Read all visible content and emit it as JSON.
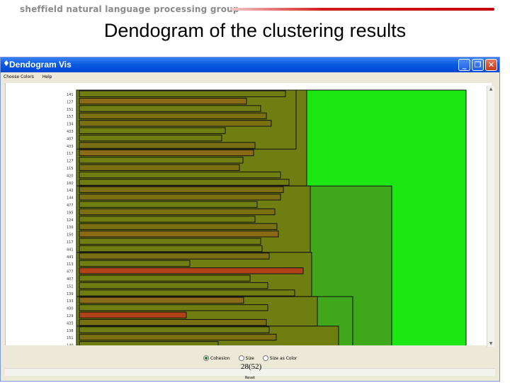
{
  "slide": {
    "header_text": "sheffield natural language processing group",
    "title": "Dendogram of the clustering results",
    "slide_number": "28(52)",
    "accent_line_color": "#c40000"
  },
  "window": {
    "title": "Dendogram Vis",
    "menu": [
      "Choose Colors",
      "Help"
    ],
    "buttons": {
      "minimize": "_",
      "maximize": "❐",
      "close": "✕"
    }
  },
  "dendrogram": {
    "leaf_labels": [
      "141",
      "127",
      "151",
      "157",
      "134",
      "433",
      "407",
      "433",
      "117",
      "127",
      "115",
      "420",
      "160",
      "142",
      "144",
      "477",
      "195",
      "124",
      "139",
      "150",
      "117",
      "441",
      "443",
      "113",
      "477",
      "407",
      "151",
      "139",
      "133",
      "430",
      "129",
      "433",
      "138",
      "151",
      "140"
    ],
    "leaf_colors": [
      "#6e7e10",
      "#8a6a14",
      "#6e7e10",
      "#7a7012",
      "#7a7012",
      "#6e7e10",
      "#6e7e10",
      "#7a7012",
      "#8a6a14",
      "#6e7e10",
      "#7a7012",
      "#6e7e10",
      "#6e7e10",
      "#7a7012",
      "#7a7012",
      "#6e7e10",
      "#7a7012",
      "#6e7e10",
      "#7a7012",
      "#8a6a14",
      "#6e7e10",
      "#6e7e10",
      "#7a7012",
      "#6e7e10",
      "#b0421a",
      "#6e7e10",
      "#6e7e10",
      "#6e7e10",
      "#8a6a14",
      "#6e7e10",
      "#b0421a",
      "#7a7012",
      "#6e7e10",
      "#7a7012",
      "#6e7e10"
    ],
    "colors": {
      "low": "#6e7e10",
      "mid": "#3ea81a",
      "high": "#1ce614"
    }
  },
  "controls": {
    "radios": [
      {
        "label": "Cohesion",
        "selected": true
      },
      {
        "label": "Size",
        "selected": false
      },
      {
        "label": "Size as Color",
        "selected": false
      }
    ],
    "reset_label": "Reset"
  }
}
